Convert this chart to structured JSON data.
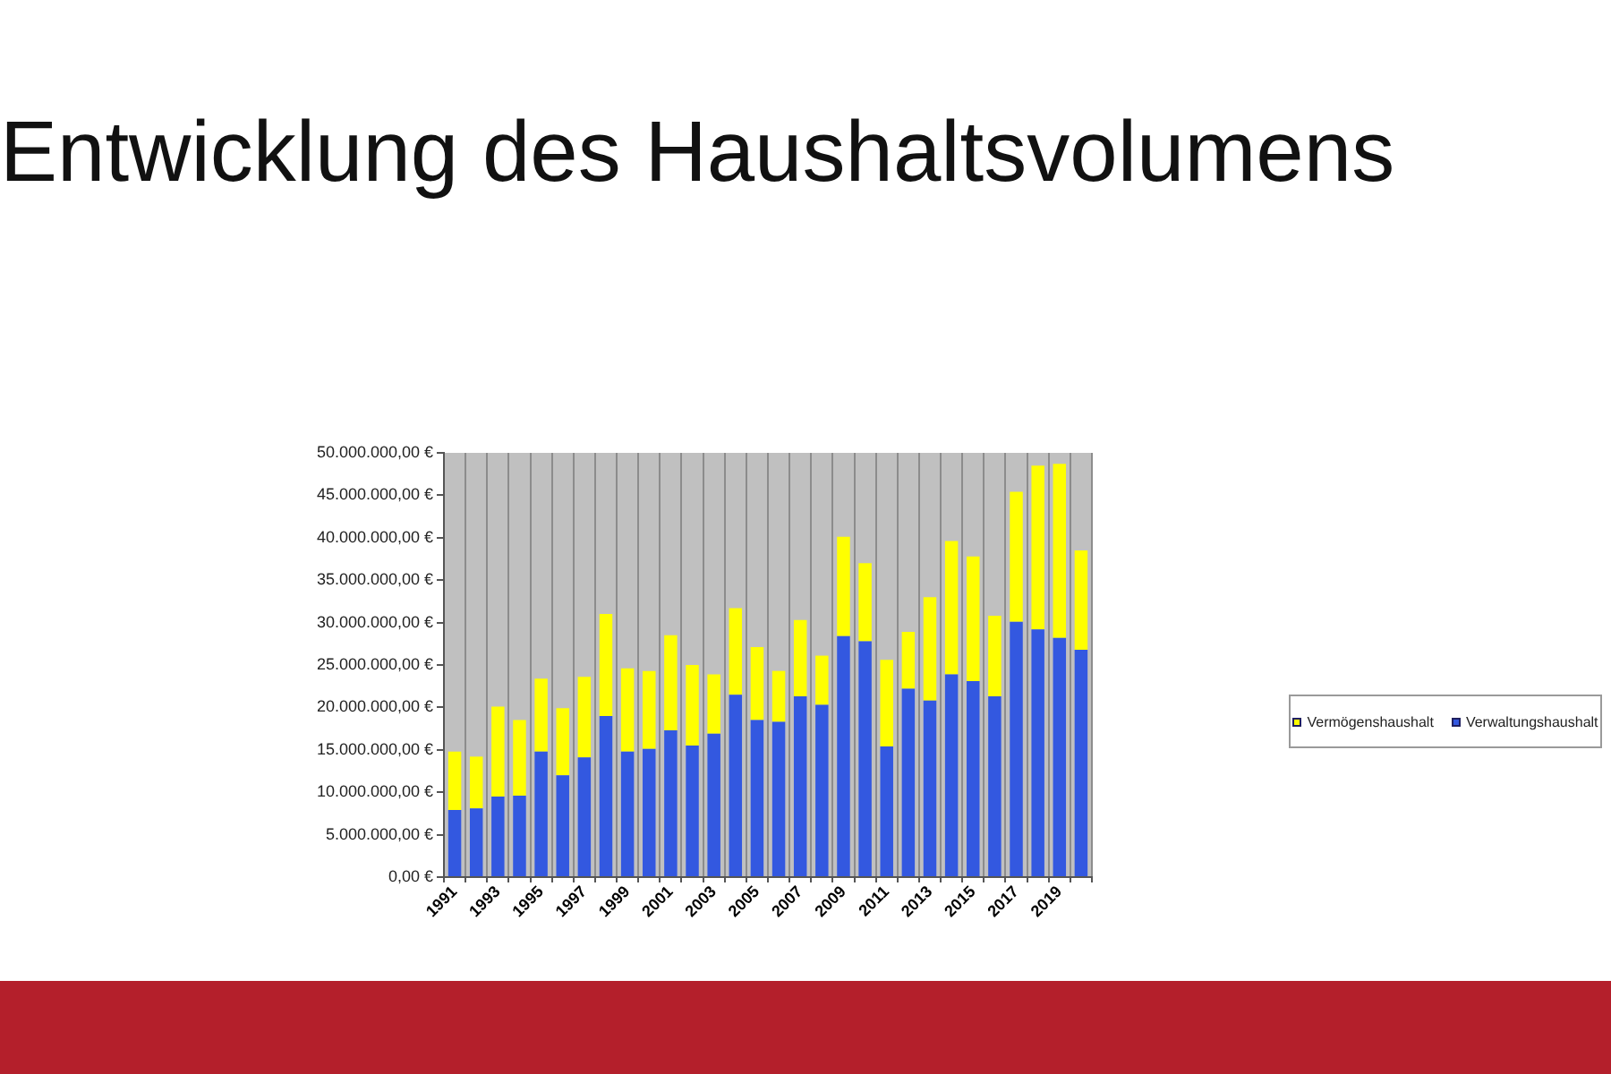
{
  "chart_data": {
    "type": "bar",
    "title": "Entwicklung des Haushaltsvolumens",
    "categories": [
      "1991",
      null,
      "1993",
      null,
      "1995",
      null,
      "1997",
      null,
      "1999",
      null,
      "2001",
      null,
      "2003",
      null,
      "2005",
      null,
      "2007",
      null,
      "2009",
      null,
      "2011",
      null,
      "2013",
      null,
      "2015",
      null,
      "2017",
      null,
      "2019",
      null
    ],
    "stacked": true,
    "series": [
      {
        "name": "Verwaltungshaushalt",
        "color": "#3358e0",
        "values": [
          7900000,
          8100000,
          9500000,
          9600000,
          14800000,
          12000000,
          14100000,
          19000000,
          14800000,
          15100000,
          17300000,
          15500000,
          16900000,
          21500000,
          18500000,
          18300000,
          21300000,
          20300000,
          28400000,
          27800000,
          15400000,
          22200000,
          20800000,
          23900000,
          23100000,
          21300000,
          30100000,
          29200000,
          28200000,
          26800000
        ]
      },
      {
        "name": "Vermögenshaushalt",
        "color": "#ffff00",
        "values": [
          6900000,
          6100000,
          10600000,
          8900000,
          8600000,
          7900000,
          9500000,
          12000000,
          9800000,
          9200000,
          11200000,
          9500000,
          7000000,
          10200000,
          8600000,
          6000000,
          9000000,
          5800000,
          11700000,
          9200000,
          10200000,
          6700000,
          12200000,
          15700000,
          14700000,
          9500000,
          15300000,
          19300000,
          20500000,
          11700000
        ]
      }
    ],
    "ylim": [
      0,
      50000000
    ],
    "yticks": [
      {
        "value": 0,
        "label": "0,00 €"
      },
      {
        "value": 5000000,
        "label": "5.000.000,00 €"
      },
      {
        "value": 10000000,
        "label": "10.000.000,00 €"
      },
      {
        "value": 15000000,
        "label": "15.000.000,00 €"
      },
      {
        "value": 20000000,
        "label": "20.000.000,00 €"
      },
      {
        "value": 25000000,
        "label": "25.000.000,00 €"
      },
      {
        "value": 30000000,
        "label": "30.000.000,00 €"
      },
      {
        "value": 35000000,
        "label": "35.000.000,00 €"
      },
      {
        "value": 40000000,
        "label": "40.000.000,00 €"
      },
      {
        "value": 45000000,
        "label": "45.000.000,00 €"
      },
      {
        "value": 50000000,
        "label": "50.000.000,00 €"
      }
    ],
    "grid": "x",
    "legend": "right"
  }
}
